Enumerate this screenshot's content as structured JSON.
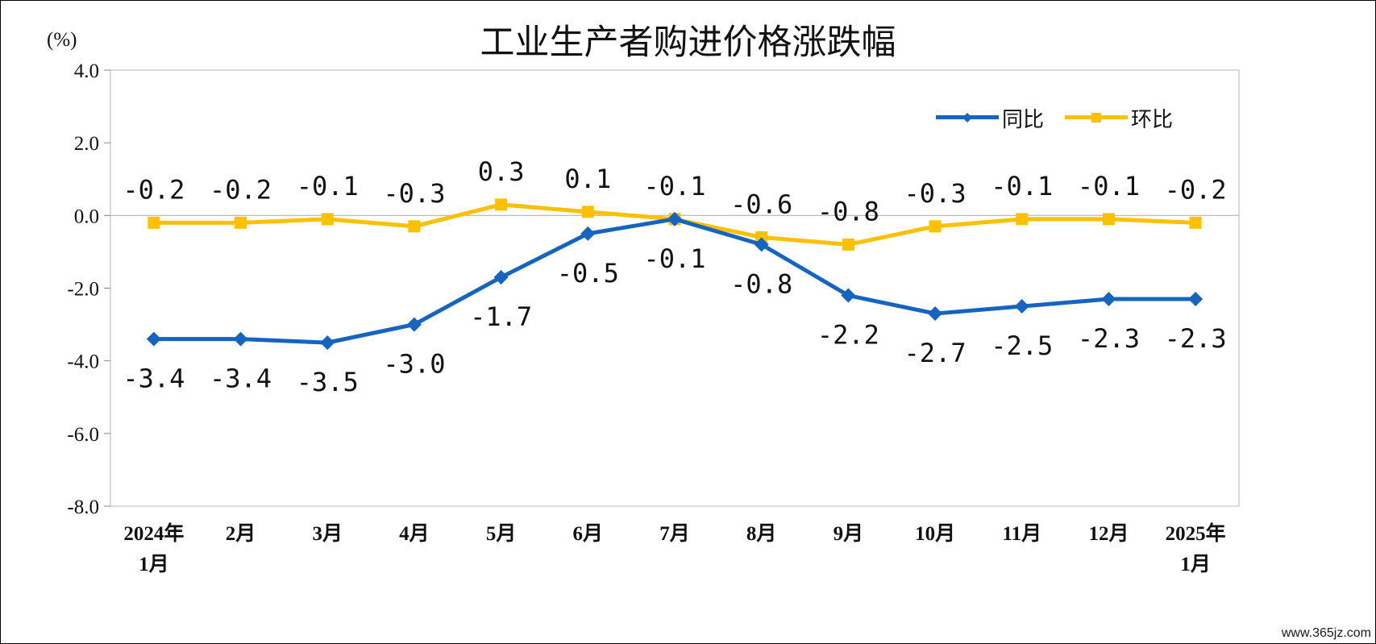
{
  "title": "工业生产者购进价格涨跌幅",
  "watermark": "www.365jz.com",
  "chart_data": {
    "type": "line",
    "title": "工业生产者购进价格涨跌幅",
    "y_unit": "(%)",
    "ylim": [
      -8.0,
      4.0
    ],
    "yticks": [
      4.0,
      2.0,
      0.0,
      -2.0,
      -4.0,
      -6.0,
      -8.0
    ],
    "ytick_labels": [
      "4.0",
      "2.0",
      "0.0",
      "-2.0",
      "-4.0",
      "-6.0",
      "-8.0"
    ],
    "categories": [
      [
        "2024年",
        "1月"
      ],
      [
        "2月"
      ],
      [
        "3月"
      ],
      [
        "4月"
      ],
      [
        "5月"
      ],
      [
        "6月"
      ],
      [
        "7月"
      ],
      [
        "8月"
      ],
      [
        "9月"
      ],
      [
        "10月"
      ],
      [
        "11月"
      ],
      [
        "12月"
      ],
      [
        "2025年",
        "1月"
      ]
    ],
    "legend_position": "top-right",
    "grid": false,
    "series": [
      {
        "name": "同比",
        "color": "#1565C0",
        "marker": "diamond",
        "values": [
          -3.4,
          -3.4,
          -3.5,
          -3.0,
          -1.7,
          -0.5,
          -0.1,
          -0.8,
          -2.2,
          -2.7,
          -2.5,
          -2.3,
          -2.3
        ],
        "labels": [
          "-3.4",
          "-3.4",
          "-3.5",
          "-3.0",
          "-1.7",
          "-0.5",
          "-0.1",
          "-0.8",
          "-2.2",
          "-2.7",
          "-2.5",
          "-2.3",
          "-2.3"
        ],
        "label_position": "below"
      },
      {
        "name": "环比",
        "color": "#FFC000",
        "marker": "square",
        "values": [
          -0.2,
          -0.2,
          -0.1,
          -0.3,
          0.3,
          0.1,
          -0.1,
          -0.6,
          -0.8,
          -0.3,
          -0.1,
          -0.1,
          -0.2
        ],
        "labels": [
          "-0.2",
          "-0.2",
          "-0.1",
          "-0.3",
          "0.3",
          "0.1",
          "-0.1",
          "-0.6",
          "-0.8",
          "-0.3",
          "-0.1",
          "-0.1",
          "-0.2"
        ],
        "label_position": "above"
      }
    ]
  }
}
